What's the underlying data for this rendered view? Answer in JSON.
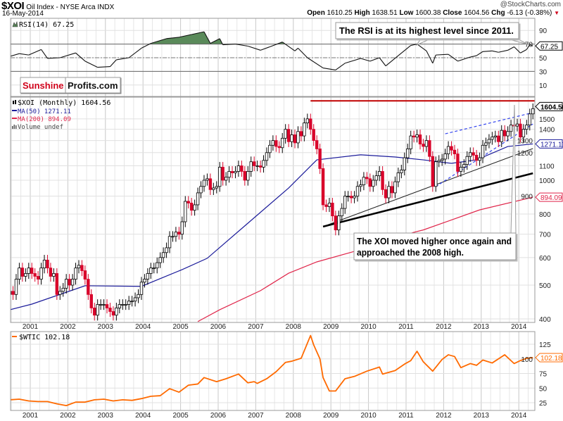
{
  "header": {
    "symbol": "$XOI",
    "name": "Oil Index - NYSE Arca INDX",
    "copyright": "@StockCharts.com",
    "date": "16-May-2014",
    "open_label": "Open",
    "open": "1610.25",
    "high_label": "High",
    "high": "1638.51",
    "low_label": "Low",
    "low": "1600.38",
    "close_label": "Close",
    "close": "1604.56",
    "chg_label": "Chg",
    "chg": "-6.13 (-0.38%)",
    "chg_icon": "down-triangle-icon"
  },
  "logo": {
    "part1": "Sunshine",
    "part2": "Profits.com",
    "part1_color": "#d0021b"
  },
  "colors": {
    "up_candle": "#ffffff",
    "down_candle": "#d9042b",
    "ma50": "#1b1b9a",
    "ma200": "#e0254a",
    "rsi_fill": "#5a8a5a",
    "wtic": "#ff6a00",
    "resistance": "#c00000",
    "dashed_trend": "#3344ee"
  },
  "chart_data": [
    {
      "type": "line",
      "panel": "rsi",
      "legend": "RSI(14) 67.25",
      "last_value_label": "67.25",
      "ylim": [
        -5,
        108
      ],
      "y_ticks": [
        "90",
        "70",
        "50",
        "30",
        "10"
      ],
      "reference_levels": [
        70,
        50,
        30
      ],
      "overbought_fill": "above 70",
      "points": [
        [
          "2000-06",
          52
        ],
        [
          "2000-09",
          56
        ],
        [
          "2000-12",
          54
        ],
        [
          "2001-04",
          62
        ],
        [
          "2001-06",
          49
        ],
        [
          "2001-10",
          50
        ],
        [
          "2002-03",
          57
        ],
        [
          "2002-06",
          45
        ],
        [
          "2002-10",
          36
        ],
        [
          "2003-02",
          37
        ],
        [
          "2003-04",
          47
        ],
        [
          "2003-08",
          50
        ],
        [
          "2003-12",
          64
        ],
        [
          "2004-03",
          71
        ],
        [
          "2004-08",
          78
        ],
        [
          "2004-12",
          80
        ],
        [
          "2005-04",
          84
        ],
        [
          "2005-08",
          88
        ],
        [
          "2005-10",
          71
        ],
        [
          "2006-01",
          78
        ],
        [
          "2006-02",
          69
        ],
        [
          "2006-06",
          70
        ],
        [
          "2006-10",
          67
        ],
        [
          "2007-02",
          61
        ],
        [
          "2007-05",
          66
        ],
        [
          "2007-09",
          73
        ],
        [
          "2008-01",
          60
        ],
        [
          "2008-02",
          64
        ],
        [
          "2008-05",
          50
        ],
        [
          "2008-10",
          35
        ],
        [
          "2009-02",
          32
        ],
        [
          "2009-05",
          42
        ],
        [
          "2009-10",
          49
        ],
        [
          "2010-01",
          45
        ],
        [
          "2010-04",
          50
        ],
        [
          "2010-06",
          38
        ],
        [
          "2010-10",
          53
        ],
        [
          "2011-02",
          68
        ],
        [
          "2011-04",
          70
        ],
        [
          "2011-07",
          60
        ],
        [
          "2011-09",
          42
        ],
        [
          "2011-10",
          54
        ],
        [
          "2012-02",
          55
        ],
        [
          "2012-05",
          45
        ],
        [
          "2012-09",
          51
        ],
        [
          "2012-11",
          53
        ],
        [
          "2013-01",
          59
        ],
        [
          "2013-04",
          60
        ],
        [
          "2013-06",
          58
        ],
        [
          "2013-09",
          61
        ],
        [
          "2013-11",
          66
        ],
        [
          "2014-01",
          57
        ],
        [
          "2014-03",
          62
        ],
        [
          "2014-04",
          69
        ],
        [
          "2014-05",
          67.25
        ]
      ],
      "annotation": "The RSI is at its highest level since 2011."
    },
    {
      "type": "candlestick",
      "panel": "price",
      "scale": "log",
      "ylim": [
        390,
        1720
      ],
      "y_ticks": [
        "400",
        "500",
        "600",
        "700",
        "800",
        "900",
        "1000",
        "1100",
        "1200",
        "1300",
        "1400",
        "1500"
      ],
      "legend": [
        {
          "label": "$XOI (Monthly) 1604.56",
          "icon": "candle-icon"
        },
        {
          "label": "MA(50) 1271.11"
        },
        {
          "label": "MA(200) 894.09"
        },
        {
          "label": "Volume undef",
          "icon": "volume-bars-icon"
        }
      ],
      "last_value_labels": {
        "price": "1604.56",
        "ma50": "1271.11",
        "ma200": "894.09"
      },
      "monthly_closes_by_year": {
        "2000": [
          480,
          470,
          520,
          560,
          530,
          540,
          560
        ],
        "2001": [
          540,
          530,
          520,
          560,
          590,
          560,
          530,
          540,
          470,
          480,
          490,
          520
        ],
        "2002": [
          500,
          520,
          560,
          570,
          550,
          520,
          470,
          430,
          410,
          440,
          440,
          440
        ],
        "2003": [
          430,
          420,
          410,
          430,
          440,
          440,
          440,
          450,
          450,
          460,
          470,
          510
        ],
        "2004": [
          520,
          540,
          560,
          560,
          580,
          600,
          620,
          640,
          690,
          690,
          710,
          700
        ],
        "2005": [
          760,
          870,
          860,
          820,
          850,
          920,
          960,
          1000,
          1010,
          940,
          950,
          960
        ],
        "2006": [
          1090,
          1000,
          1020,
          1060,
          1050,
          1060,
          1100,
          1060,
          1000,
          1060,
          1130,
          1100
        ],
        "2007": [
          1100,
          1090,
          1140,
          1200,
          1260,
          1300,
          1250,
          1240,
          1320,
          1400,
          1290,
          1350
        ],
        "2008": [
          1280,
          1380,
          1340,
          1460,
          1500,
          1400,
          1300,
          1230,
          1080,
          850,
          840,
          860
        ],
        "2009": [
          790,
          720,
          790,
          830,
          900,
          900,
          890,
          900,
          960,
          970,
          1020,
          1010
        ],
        "2010": [
          960,
          1000,
          1030,
          1060,
          940,
          890,
          960,
          920,
          990,
          1050,
          1070,
          1160
        ],
        "2011": [
          1230,
          1340,
          1330,
          1350,
          1270,
          1250,
          1300,
          1170,
          960,
          1130,
          1140,
          1150
        ],
        "2012": [
          1190,
          1250,
          1220,
          1190,
          1060,
          1090,
          1110,
          1170,
          1200,
          1180,
          1140,
          1160
        ],
        "2013": [
          1260,
          1280,
          1310,
          1330,
          1340,
          1290,
          1390,
          1340,
          1380,
          1440,
          1430,
          1450
        ],
        "2014": [
          1330,
          1400,
          1440,
          1550,
          1604.56
        ]
      },
      "ma50": [
        [
          "2000-06",
          425
        ],
        [
          "2001-01",
          441
        ],
        [
          "2002-06",
          498
        ],
        [
          "2003-12",
          496
        ],
        [
          "2005-01",
          554
        ],
        [
          "2005-09",
          597
        ],
        [
          "2006-10",
          753
        ],
        [
          "2007-11",
          950
        ],
        [
          "2008-08",
          1144
        ],
        [
          "2009-10",
          1183
        ],
        [
          "2010-09",
          1166
        ],
        [
          "2011-06",
          1144
        ],
        [
          "2012-03",
          1118
        ],
        [
          "2012-11",
          1144
        ],
        [
          "2013-09",
          1250
        ],
        [
          "2014-05",
          1271.11
        ]
      ],
      "ma200": [
        [
          "2005-06",
          393
        ],
        [
          "2006-01",
          425
        ],
        [
          "2007-02",
          482
        ],
        [
          "2007-11",
          541
        ],
        [
          "2008-08",
          583
        ],
        [
          "2009-08",
          625
        ],
        [
          "2011-03",
          709
        ],
        [
          "2011-06",
          720
        ],
        [
          "2012-12",
          822
        ],
        [
          "2014-05",
          894.09
        ]
      ],
      "resistance_line": {
        "value": 1690,
        "from": "2008-06",
        "to": "2014-05"
      },
      "trendlines": [
        {
          "style": "thin-black",
          "from": [
            "2008-10",
            736
          ],
          "to": [
            "2014-05",
            1233
          ]
        },
        {
          "style": "thick-black",
          "from": [
            "2008-10",
            736
          ],
          "to": [
            "2014-05",
            1047
          ]
        },
        {
          "style": "blue-dashed",
          "from": [
            "2012-01",
            1359
          ],
          "to": [
            "2014-05",
            1563
          ]
        },
        {
          "style": "blue-dashed",
          "from": [
            "2011-10",
            959
          ],
          "to": [
            "2014-05",
            1450
          ]
        }
      ],
      "annotation": [
        "The XOI moved higher once again and",
        "approached the 2008 high."
      ]
    },
    {
      "type": "line",
      "panel": "wtic",
      "legend": "$WTIC 102.18",
      "last_value_label": "102.18",
      "ylim": [
        15,
        145
      ],
      "y_ticks": [
        "25",
        "50",
        "75",
        "100",
        "125"
      ],
      "points": [
        [
          "2000-06",
          30
        ],
        [
          "2000-09",
          31
        ],
        [
          "2000-12",
          28
        ],
        [
          "2001-03",
          27
        ],
        [
          "2001-06",
          27
        ],
        [
          "2001-09",
          23
        ],
        [
          "2001-12",
          20
        ],
        [
          "2002-03",
          26
        ],
        [
          "2002-06",
          26
        ],
        [
          "2002-09",
          30
        ],
        [
          "2002-12",
          31
        ],
        [
          "2003-03",
          28
        ],
        [
          "2003-06",
          30
        ],
        [
          "2003-09",
          29
        ],
        [
          "2003-12",
          32
        ],
        [
          "2004-03",
          36
        ],
        [
          "2004-06",
          37
        ],
        [
          "2004-09",
          49
        ],
        [
          "2004-12",
          43
        ],
        [
          "2005-03",
          55
        ],
        [
          "2005-06",
          57
        ],
        [
          "2005-08",
          68
        ],
        [
          "2005-12",
          61
        ],
        [
          "2006-03",
          66
        ],
        [
          "2006-07",
          74
        ],
        [
          "2006-10",
          59
        ],
        [
          "2006-12",
          61
        ],
        [
          "2007-01",
          58
        ],
        [
          "2007-04",
          66
        ],
        [
          "2007-07",
          78
        ],
        [
          "2007-10",
          94
        ],
        [
          "2007-12",
          96
        ],
        [
          "2008-03",
          101
        ],
        [
          "2008-06",
          140
        ],
        [
          "2008-07",
          124
        ],
        [
          "2008-09",
          100
        ],
        [
          "2008-10",
          68
        ],
        [
          "2008-12",
          45
        ],
        [
          "2009-02",
          45
        ],
        [
          "2009-05",
          66
        ],
        [
          "2009-08",
          70
        ],
        [
          "2009-12",
          79
        ],
        [
          "2010-04",
          86
        ],
        [
          "2010-05",
          74
        ],
        [
          "2010-09",
          80
        ],
        [
          "2010-12",
          91
        ],
        [
          "2011-02",
          97
        ],
        [
          "2011-04",
          113
        ],
        [
          "2011-06",
          95
        ],
        [
          "2011-09",
          79
        ],
        [
          "2011-12",
          99
        ],
        [
          "2012-02",
          107
        ],
        [
          "2012-04",
          104
        ],
        [
          "2012-06",
          85
        ],
        [
          "2012-09",
          92
        ],
        [
          "2012-11",
          89
        ],
        [
          "2013-01",
          98
        ],
        [
          "2013-04",
          93
        ],
        [
          "2013-08",
          107
        ],
        [
          "2013-11",
          92
        ],
        [
          "2014-01",
          97
        ],
        [
          "2014-03",
          101
        ],
        [
          "2014-05",
          102.18
        ]
      ]
    }
  ],
  "x_axis": {
    "labels": [
      "2001",
      "2002",
      "2003",
      "2004",
      "2005",
      "2006",
      "2007",
      "2008",
      "2009",
      "2010",
      "2011",
      "2012",
      "2013",
      "2014"
    ]
  }
}
